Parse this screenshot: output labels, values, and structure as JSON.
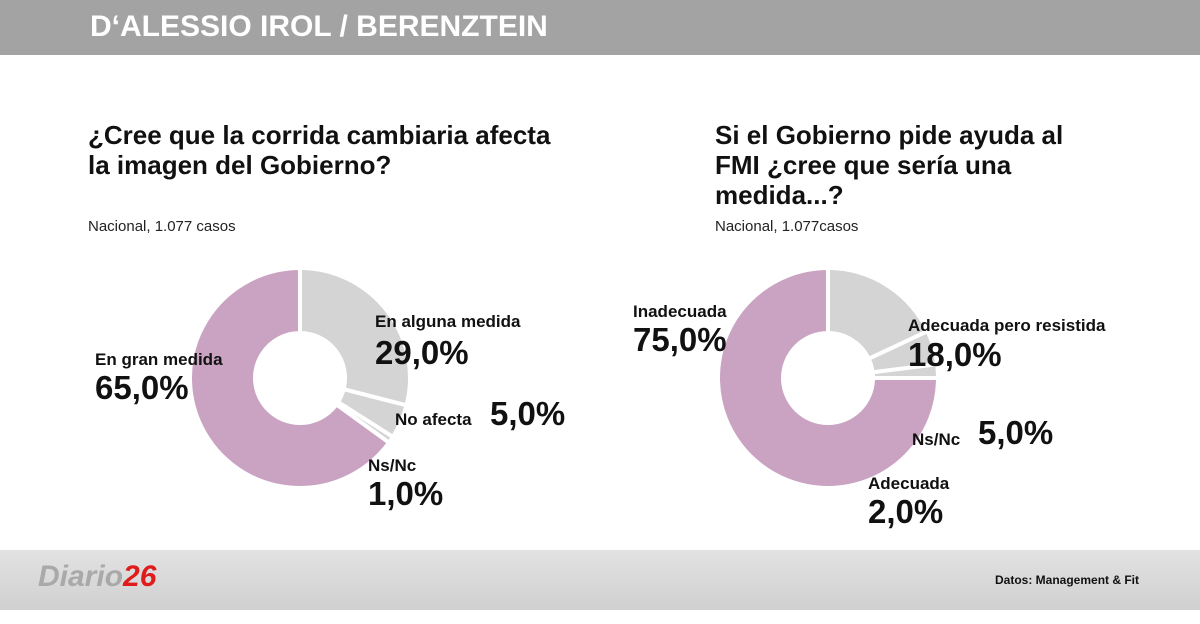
{
  "header": "D‘ALESSIO IROL / BERENZTEIN",
  "chart_data": [
    {
      "type": "pie",
      "title": "¿Cree que la corrida cambiaria afecta la imagen del Gobierno?",
      "subtitle": "Nacional, 1.077 casos",
      "categories": [
        "En alguna medida",
        "No afecta",
        "Ns/Nc",
        "En gran medida"
      ],
      "values": [
        29,
        5,
        1,
        65
      ],
      "value_labels": [
        "29,0%",
        "5,0%",
        "1,0%",
        "65,0%"
      ],
      "colors": [
        "#d4d4d4",
        "#d4d4d4",
        "#d4d4d4",
        "#c9a3c1"
      ]
    },
    {
      "type": "pie",
      "title": "Si el Gobierno pide ayuda al FMI ¿cree que sería una medida...?",
      "subtitle": "Nacional, 1.077casos",
      "categories": [
        "Adecuada pero resistida",
        "Ns/Nc",
        "Adecuada",
        "Inadecuada"
      ],
      "values": [
        18,
        5,
        2,
        75
      ],
      "value_labels": [
        "18,0%",
        "5,0%",
        "2,0%",
        "75,0%"
      ],
      "colors": [
        "#d4d4d4",
        "#d4d4d4",
        "#d4d4d4",
        "#c9a3c1"
      ]
    }
  ],
  "footer": {
    "logo_text": "Diario",
    "logo_number": "26",
    "source": "Datos: Management & Fit"
  }
}
